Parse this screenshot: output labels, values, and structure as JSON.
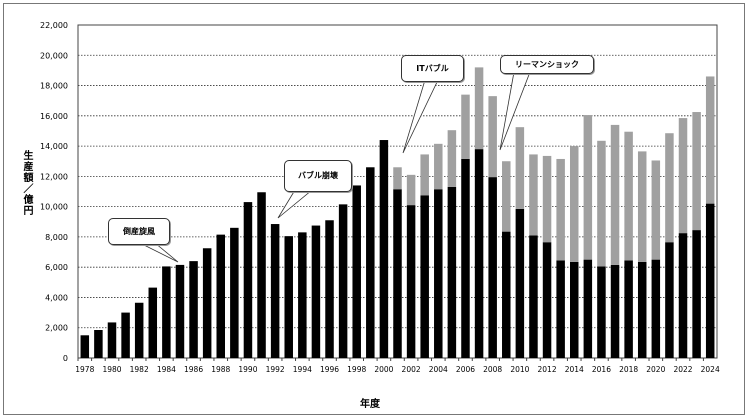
{
  "chart_data": {
    "type": "bar",
    "stacked": true,
    "title": "",
    "xlabel": "年度",
    "ylabel": "生産額／億円",
    "ylim": [
      0,
      22000
    ],
    "yticks": [
      0,
      2000,
      4000,
      6000,
      8000,
      10000,
      12000,
      14000,
      16000,
      18000,
      20000,
      22000
    ],
    "ytick_labels": [
      "0",
      "2,000",
      "4,000",
      "6,000",
      "8,000",
      "10,000",
      "12,000",
      "14,000",
      "16,000",
      "18,000",
      "20,000",
      "22,000"
    ],
    "grid": true,
    "categories": [
      "1978",
      "1979",
      "1980",
      "1981",
      "1982",
      "1983",
      "1984",
      "1985",
      "1986",
      "1987",
      "1988",
      "1989",
      "1990",
      "1991",
      "1992",
      "1993",
      "1994",
      "1995",
      "1996",
      "1997",
      "1998",
      "1999",
      "2000",
      "2001",
      "2002",
      "2003",
      "2004",
      "2005",
      "2006",
      "2007",
      "2008",
      "2009",
      "2010",
      "2011",
      "2012",
      "2013",
      "2014",
      "2015",
      "2016",
      "2017",
      "2018",
      "2019",
      "2020",
      "2021",
      "2022",
      "2023",
      "2024"
    ],
    "series": [
      {
        "name": "black",
        "color": "#000000",
        "values": [
          1500,
          1850,
          2350,
          3000,
          3650,
          4650,
          6050,
          6150,
          6400,
          7250,
          8150,
          8600,
          10300,
          10950,
          8850,
          8050,
          8300,
          8750,
          9100,
          10150,
          11400,
          12600,
          14400,
          11150,
          10100,
          10750,
          11150,
          11300,
          13150,
          13800,
          11950,
          8350,
          9850,
          8100,
          7650,
          6450,
          6350,
          6500,
          6050,
          6150,
          6450,
          6350,
          6500,
          7650,
          8250,
          8450,
          10200
        ]
      },
      {
        "name": "gray",
        "color": "#a0a0a0",
        "values": [
          0,
          0,
          0,
          0,
          0,
          0,
          0,
          0,
          0,
          0,
          0,
          0,
          0,
          0,
          0,
          0,
          0,
          0,
          0,
          0,
          0,
          0,
          0,
          1450,
          2000,
          2700,
          3000,
          3750,
          4250,
          5400,
          5350,
          4650,
          5400,
          5350,
          5700,
          6700,
          7650,
          9550,
          8300,
          9250,
          8500,
          7300,
          6550,
          7200,
          7600,
          7800,
          8400
        ]
      }
    ],
    "annotations": [
      {
        "text": "倒産旋風",
        "year": "1985"
      },
      {
        "text": "バブル崩壊",
        "year": "1992"
      },
      {
        "text": "ITバブル",
        "year": "2001"
      },
      {
        "text": "リーマンショック",
        "year": "2009"
      }
    ]
  }
}
